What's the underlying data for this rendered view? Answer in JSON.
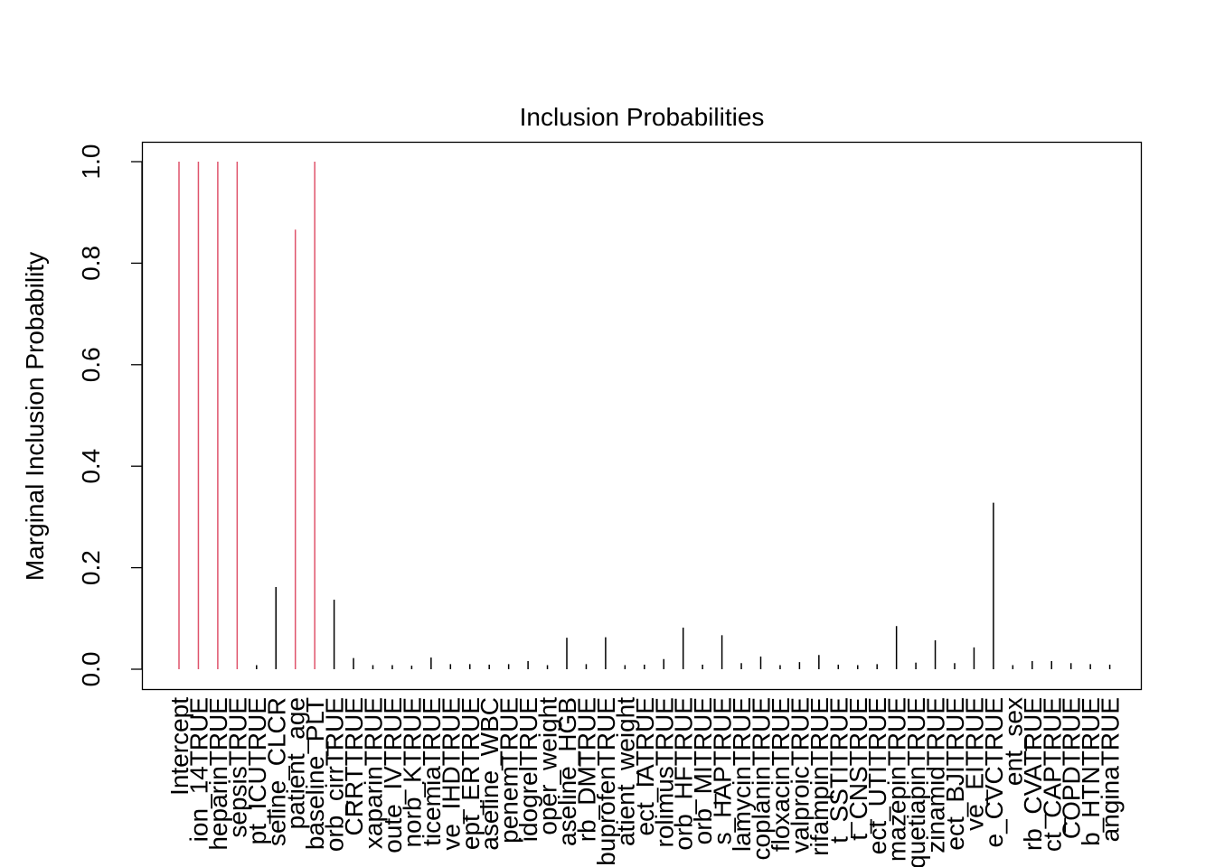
{
  "chart_data": {
    "type": "bar",
    "title": "Inclusion Probabilities",
    "xlabel": "",
    "ylabel": "Marginal Inclusion Probability",
    "ylim": [
      0,
      1.0
    ],
    "yticks": [
      "0.0",
      "0.2",
      "0.4",
      "0.6",
      "0.8",
      "1.0"
    ],
    "grid": false,
    "legend": "none",
    "colors": {
      "included": "#DF536B",
      "excluded": "#000000"
    },
    "categories": [
      "Intercept",
      "ion_14TRUE",
      "heparinTRUE",
      "sepsisTRUE",
      "pt_ICUTRUE",
      "seline_CLCR",
      "patient_age",
      "baseline_PLT",
      "orb_cirrTRUE",
      "CRRTTRUE",
      "xaparinTRUE",
      "oute_IVTRUE",
      "norb_KTRUE",
      "ticemiaTRUE",
      "ve_IHDTRUE",
      "ept_ERTRUE",
      "aseline_WBC",
      "penemTRUE",
      "idogrelTRUE",
      "oper_weight",
      "aseline_HGB",
      "rb_DMTRUE",
      "ibuprofenTRUE",
      "atient_weight",
      "ect_IATRUE",
      "rolimusTRUE",
      "orb_HFTRUE",
      "orb_MITRUE",
      "s_HAPTRUE",
      "lamycinTRUE",
      "coplaninTRUE",
      "floxacinTRUE",
      "valproicTRUE",
      "rifampinTRUE",
      "t_SSTITRUE",
      "t_CNSTRUE",
      "ect_UTITRUE",
      "mazepinTRUE",
      "quetiapinTRUE",
      "zinamidTRUE",
      "ect_BJITRUE",
      "ve_EITRUE",
      "e_CVCTRUE",
      "ent_sex",
      "rb_CVATRUE",
      "ct_CAPTRUE",
      "COPDTRUE",
      "b_HTNTRUE",
      "anginaTRUE"
    ],
    "values": [
      1.0,
      1.0,
      1.0,
      1.0,
      0.008,
      0.162,
      0.866,
      1.0,
      0.137,
      0.022,
      0.008,
      0.008,
      0.007,
      0.023,
      0.01,
      0.01,
      0.009,
      0.01,
      0.016,
      0.008,
      0.062,
      0.01,
      0.063,
      0.008,
      0.009,
      0.02,
      0.082,
      0.009,
      0.067,
      0.012,
      0.025,
      0.008,
      0.014,
      0.028,
      0.009,
      0.008,
      0.01,
      0.085,
      0.013,
      0.057,
      0.012,
      0.043,
      0.328,
      0.008,
      0.016,
      0.016,
      0.012,
      0.01,
      0.009
    ],
    "included_threshold": 0.5
  }
}
